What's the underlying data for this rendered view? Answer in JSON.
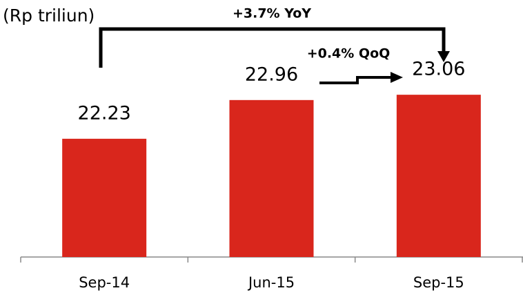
{
  "chart_data": {
    "type": "bar",
    "unit_label": "(Rp triliun)",
    "annotations": [
      "+3.7% YoY",
      "+0.4% QoQ"
    ],
    "categories": [
      "Sep-14",
      "Jun-15",
      "Sep-15"
    ],
    "values": [
      22.23,
      22.96,
      23.06
    ],
    "color": "#d9261c",
    "ylim": [
      20,
      24
    ]
  }
}
